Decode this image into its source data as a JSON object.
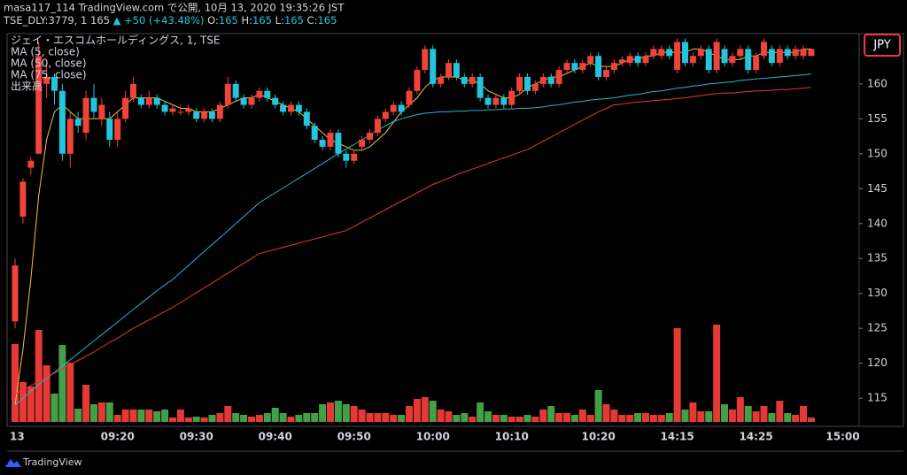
{
  "header": {
    "published": "masa117_114 TradingView.com で公開, 10月 13, 2020 19:35:26 JST",
    "symbol": "TSE_DLY:3779, 1",
    "last": 165,
    "change": "▲ +50 (+43.48%)",
    "ohlc": [
      {
        "label": "O:",
        "value": 165
      },
      {
        "label": "H:",
        "value": 165
      },
      {
        "label": "L:",
        "value": 165
      },
      {
        "label": "C:",
        "value": 165
      }
    ]
  },
  "footer": {
    "brand": "TradingView"
  },
  "chart_data": {
    "type": "candlestick",
    "legend_title": "ジェイ・エスコムホールディングス, 1, TSE",
    "currency": "JPY",
    "colors": {
      "up": "#f0433a",
      "down": "#22c5dc",
      "volume_up": "#e53935",
      "volume_down": "#43a047"
    },
    "ylim": [
      111.6,
      167.2
    ],
    "yticks": [
      115,
      120,
      125,
      130,
      135,
      140,
      145,
      150,
      155,
      160
    ],
    "grid": false,
    "categories": [
      "13",
      null,
      null,
      null,
      null,
      null,
      null,
      null,
      null,
      null,
      null,
      null,
      null,
      "09:20",
      null,
      null,
      null,
      null,
      null,
      null,
      null,
      null,
      null,
      "09:30",
      null,
      null,
      null,
      null,
      null,
      null,
      null,
      null,
      null,
      "09:40",
      null,
      null,
      null,
      null,
      null,
      null,
      null,
      null,
      null,
      "09:50",
      null,
      null,
      null,
      null,
      null,
      null,
      null,
      null,
      null,
      "10:00",
      null,
      null,
      null,
      null,
      null,
      null,
      null,
      null,
      null,
      "10:10",
      null,
      null,
      null,
      null,
      null,
      null,
      null,
      null,
      null,
      null,
      "10:20",
      null,
      null,
      null,
      null,
      null,
      null,
      null,
      null,
      null,
      "14:15",
      null,
      null,
      null,
      null,
      null,
      null,
      null,
      null,
      null,
      "14:25",
      null,
      null,
      null,
      null,
      null,
      null,
      null,
      null,
      null,
      null,
      "15:00"
    ],
    "open": [
      126,
      141,
      148,
      150,
      160,
      161,
      159,
      150,
      155,
      153,
      158,
      155,
      155,
      152,
      155,
      158,
      158,
      157,
      158,
      157,
      156,
      156,
      156,
      156,
      155,
      156,
      155,
      157,
      160,
      158,
      157,
      158,
      159,
      158,
      157,
      156,
      157,
      156,
      154,
      152,
      151,
      153,
      150,
      149,
      151,
      152,
      153,
      155,
      156,
      157,
      157,
      159,
      162,
      165,
      160,
      161,
      163,
      161,
      160,
      161,
      158,
      157,
      158,
      157,
      159,
      161,
      159,
      160,
      161,
      160,
      162,
      163,
      162,
      163,
      164,
      161,
      162,
      163,
      163,
      164,
      163,
      164,
      164,
      165,
      162,
      166,
      163,
      164,
      165,
      162,
      165,
      163,
      164,
      165,
      162,
      164,
      165,
      163,
      165,
      164,
      164,
      164,
      null,
      null,
      null,
      null
    ],
    "high": [
      135,
      146.5,
      149.5,
      166,
      163,
      161.5,
      160,
      156,
      156,
      159,
      160,
      158,
      156,
      156,
      159,
      161,
      158.5,
      159,
      158.5,
      157.5,
      157,
      157,
      157,
      156.5,
      156.5,
      156.5,
      157.5,
      161,
      160.5,
      158.5,
      158.5,
      159.5,
      159.5,
      158.5,
      157.5,
      157.5,
      157.5,
      156.5,
      154.5,
      152.5,
      153.5,
      153.5,
      150.5,
      150.5,
      152.5,
      153.5,
      155.5,
      156.5,
      157.5,
      157.5,
      159.5,
      162.5,
      165.5,
      165.5,
      161.5,
      163.5,
      163.5,
      161.5,
      161.5,
      161.5,
      158.5,
      158.5,
      158.5,
      159.5,
      161.5,
      161.5,
      160.5,
      161.5,
      161.5,
      162.5,
      163.5,
      163.5,
      163.5,
      164.5,
      164.5,
      162.5,
      163.5,
      164,
      164.5,
      164.5,
      164.5,
      165.5,
      165.5,
      165.5,
      166.5,
      166.5,
      164.5,
      165.5,
      165.5,
      166.5,
      165.5,
      164.5,
      165.5,
      165.5,
      164.5,
      166.5,
      165.5,
      165.5,
      165.5,
      165.5,
      165.5,
      165,
      null,
      null,
      null,
      null
    ],
    "low": [
      125,
      140,
      147,
      150,
      158,
      157,
      149,
      148,
      153,
      152,
      155,
      154,
      151,
      151,
      154.5,
      157.5,
      156.5,
      156.5,
      156.5,
      155.5,
      155.5,
      155.5,
      155.5,
      154.5,
      154.5,
      154.5,
      154.5,
      156.5,
      157.5,
      156.5,
      156.5,
      157.5,
      157.5,
      156.5,
      155.5,
      155.5,
      155.5,
      153.5,
      151.5,
      150.5,
      150.5,
      149.5,
      148,
      148.5,
      150.5,
      151.5,
      152.5,
      154.5,
      155.5,
      155.5,
      156.5,
      158.5,
      161.5,
      159.5,
      159.5,
      160.5,
      160.5,
      159.5,
      159.5,
      157.5,
      156.5,
      156.5,
      156.5,
      156.5,
      158.5,
      158.5,
      158.5,
      159.5,
      159.5,
      159.5,
      161.5,
      161.5,
      161.5,
      162.5,
      160.5,
      160.5,
      161.5,
      162.5,
      162.5,
      162.5,
      162.5,
      163.5,
      163.5,
      163.5,
      161.5,
      162.5,
      162.5,
      163.5,
      161.5,
      161.5,
      162.5,
      162.5,
      163.5,
      161.5,
      161.5,
      163.5,
      162.5,
      162.5,
      163.5,
      163.5,
      163.5,
      164,
      null,
      null,
      null,
      null
    ],
    "close": [
      134,
      146,
      149,
      164,
      161,
      159,
      150,
      155,
      154,
      158,
      156,
      157,
      152,
      155,
      158,
      160,
      157,
      158,
      157,
      156,
      156.5,
      156,
      156.5,
      155,
      156,
      155,
      157,
      160,
      158,
      157,
      158,
      159,
      158,
      157,
      156,
      157,
      156,
      154,
      152,
      151,
      153,
      150,
      149,
      150,
      152,
      153,
      155,
      156,
      157,
      156,
      159,
      162,
      165,
      160,
      161,
      163,
      161,
      160,
      161,
      158,
      157,
      158,
      157,
      159,
      161,
      159,
      160,
      161,
      160,
      162,
      163,
      162,
      163,
      164,
      161,
      162,
      163,
      163.5,
      164,
      163,
      164,
      165,
      165,
      164,
      166,
      163,
      164,
      165,
      162,
      166,
      163,
      164,
      165,
      162,
      164,
      166,
      163,
      165,
      164,
      165,
      165,
      165,
      null,
      null,
      null,
      null
    ],
    "series": [
      {
        "name": "MA (5, close)",
        "color": "#e9c83a",
        "values": [
          114,
          122,
          132,
          144,
          152,
          156,
          157,
          156,
          155,
          155,
          155,
          155,
          155,
          156,
          157,
          158,
          158,
          158,
          158,
          157.5,
          157,
          156.5,
          156.5,
          156,
          156,
          156,
          156.5,
          157,
          157.5,
          158,
          158,
          158.5,
          158,
          157.5,
          157,
          156.5,
          156,
          155,
          154,
          153,
          152,
          151.5,
          151,
          150.5,
          150.5,
          151,
          152,
          153,
          154.5,
          156,
          157,
          158,
          159.5,
          160.5,
          161,
          161,
          161,
          160.5,
          160.5,
          160,
          159,
          158.5,
          158,
          158,
          158.5,
          159.5,
          160,
          160.5,
          161,
          161,
          161.5,
          162,
          162.5,
          163,
          162.5,
          162.5,
          162.5,
          163,
          163.5,
          163.5,
          164,
          164,
          164.5,
          164.5,
          164.5,
          164.5,
          165,
          165,
          164.5,
          164,
          163.5,
          163.5,
          163.5,
          164,
          164,
          164.5,
          164.5,
          164.5,
          164.5,
          164.5,
          165,
          165,
          null,
          null,
          null,
          null
        ]
      },
      {
        "name": "MA (50, close)",
        "color": "#26b5d0",
        "values": [
          114,
          115,
          116,
          117,
          117.8,
          118.7,
          119.6,
          120.5,
          121.4,
          122.3,
          123.2,
          124.1,
          125,
          125.9,
          126.8,
          127.7,
          128.6,
          129.5,
          130.4,
          131.2,
          132,
          133,
          134,
          135,
          136,
          137,
          138,
          139,
          140,
          141,
          142,
          143,
          143.7,
          144.4,
          145.1,
          145.8,
          146.5,
          147.2,
          147.9,
          148.6,
          149.3,
          150,
          150.7,
          151.3,
          152,
          152.7,
          153.4,
          154,
          154.6,
          155,
          155.3,
          155.6,
          155.8,
          155.9,
          156,
          156,
          156.1,
          156.1,
          156.2,
          156.2,
          156.3,
          156.3,
          156.4,
          156.4,
          156.5,
          156.5,
          156.6,
          156.7,
          156.9,
          157,
          157.2,
          157.4,
          157.5,
          157.7,
          157.8,
          157.9,
          158,
          158.2,
          158.4,
          158.5,
          158.7,
          158.9,
          159,
          159.2,
          159.4,
          159.5,
          159.7,
          159.8,
          160,
          160.1,
          160.2,
          160.3,
          160.5,
          160.6,
          160.7,
          160.8,
          160.9,
          161,
          161.1,
          161.2,
          161.3,
          161.4,
          null,
          null,
          null,
          null
        ]
      },
      {
        "name": "MA (75, close)",
        "color": "#e53935",
        "values": [
          115.6,
          116.2,
          116.8,
          117.4,
          118,
          118.6,
          119.2,
          119.8,
          120.4,
          121,
          121.6,
          122.3,
          123,
          123.6,
          124.3,
          125,
          125.6,
          126.2,
          126.8,
          127.4,
          128,
          128.7,
          129.4,
          130.1,
          130.8,
          131.5,
          132.2,
          132.9,
          133.6,
          134.3,
          135,
          135.7,
          136,
          136.3,
          136.6,
          136.9,
          137.2,
          137.5,
          137.8,
          138.1,
          138.4,
          138.7,
          139,
          139.6,
          140.2,
          140.8,
          141.4,
          142,
          142.6,
          143.2,
          143.8,
          144.4,
          145,
          145.6,
          146,
          146.5,
          147,
          147.4,
          147.8,
          148.2,
          148.6,
          149,
          149.4,
          149.8,
          150.2,
          150.6,
          151.2,
          151.8,
          152.4,
          153,
          153.6,
          154.2,
          154.8,
          155.4,
          156,
          156.5,
          157,
          157.1,
          157.3,
          157.4,
          157.5,
          157.6,
          157.7,
          157.8,
          157.9,
          158,
          158.2,
          158.3,
          158.5,
          158.6,
          158.7,
          158.7,
          158.8,
          158.9,
          159,
          159,
          159.1,
          159.2,
          159.2,
          159.3,
          159.4,
          159.5,
          null,
          null,
          null,
          null
        ]
      }
    ],
    "volume_name": "出来高",
    "volume_ylim": [
      0,
      439
    ],
    "volume": [
      88,
      45,
      40,
      104,
      64,
      32,
      87,
      67,
      15,
      42,
      20,
      22,
      22,
      8,
      14,
      14,
      14,
      14,
      12,
      14,
      5,
      14,
      5,
      6,
      5,
      8,
      10,
      18,
      10,
      8,
      6,
      8,
      10,
      16,
      10,
      6,
      8,
      10,
      10,
      20,
      22,
      24,
      20,
      18,
      14,
      10,
      10,
      10,
      8,
      8,
      18,
      26,
      28,
      24,
      14,
      12,
      8,
      10,
      6,
      22,
      12,
      8,
      8,
      6,
      6,
      8,
      6,
      14,
      18,
      10,
      10,
      8,
      14,
      8,
      36,
      20,
      14,
      8,
      8,
      10,
      10,
      8,
      8,
      10,
      106,
      14,
      22,
      12,
      12,
      110,
      20,
      14,
      28,
      18,
      12,
      18,
      10,
      24,
      10,
      8,
      18,
      5,
      null,
      null,
      null,
      null
    ]
  }
}
